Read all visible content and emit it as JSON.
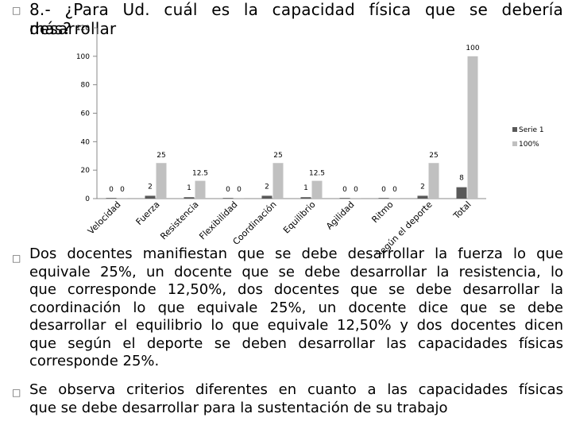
{
  "heading": {
    "line1": "8.- ¿Para Ud. cuál es la capacidad física que se debería desarrollar",
    "line2": "más?",
    "bullet_glyph": "□"
  },
  "chart_data": {
    "type": "bar",
    "categories": [
      "Velocidad",
      "Fuerza",
      "Resistencia",
      "Flexibilidad",
      "Coordinación",
      "Equilibrio",
      "Agilidad",
      "Ritmo",
      "Según el deporte",
      "Total"
    ],
    "series": [
      {
        "name": "Serie 1",
        "values": [
          0,
          2,
          1,
          0,
          2,
          1,
          0,
          0,
          2,
          8
        ],
        "color": "#595959"
      },
      {
        "name": "100%",
        "values": [
          0,
          25,
          12.5,
          0,
          25,
          12.5,
          0,
          0,
          25,
          100
        ],
        "color": "#c0c0c0"
      }
    ],
    "data_labels": [
      [
        "0",
        "2",
        "1",
        "0",
        "2",
        "1",
        "0",
        "0",
        "2",
        "8"
      ],
      [
        "0",
        "25",
        "12.5",
        "0",
        "25",
        "12.5",
        "0",
        "0",
        "25",
        "100"
      ]
    ],
    "y_ticks": [
      "0",
      "20",
      "40",
      "60",
      "80",
      "100",
      "120"
    ],
    "ylim": [
      0,
      120
    ],
    "legend": [
      "Serie 1",
      "100%"
    ],
    "legend_position": "right",
    "grid": false
  },
  "paragraphs": [
    {
      "lines": [
        "Dos docentes manifiestan que se debe desarrollar la fuerza lo que",
        "equivale 25%, un docente que se debe desarrollar la resistencia, lo",
        "que corresponde 12,50%, dos docentes  que se debe desarrollar la",
        "coordinación lo que equivale 25%, un docente dice que se debe",
        "desarrollar el equilibrio lo que equivale  12,50% y dos docentes dicen",
        "que según el deporte se deben desarrollar las capacidades físicas",
        "corresponde 25%."
      ]
    },
    {
      "lines": [
        "Se observa criterios diferentes en cuanto a las  capacidades  físicas",
        "que se debe desarrollar para la sustentación de su trabajo"
      ]
    }
  ]
}
